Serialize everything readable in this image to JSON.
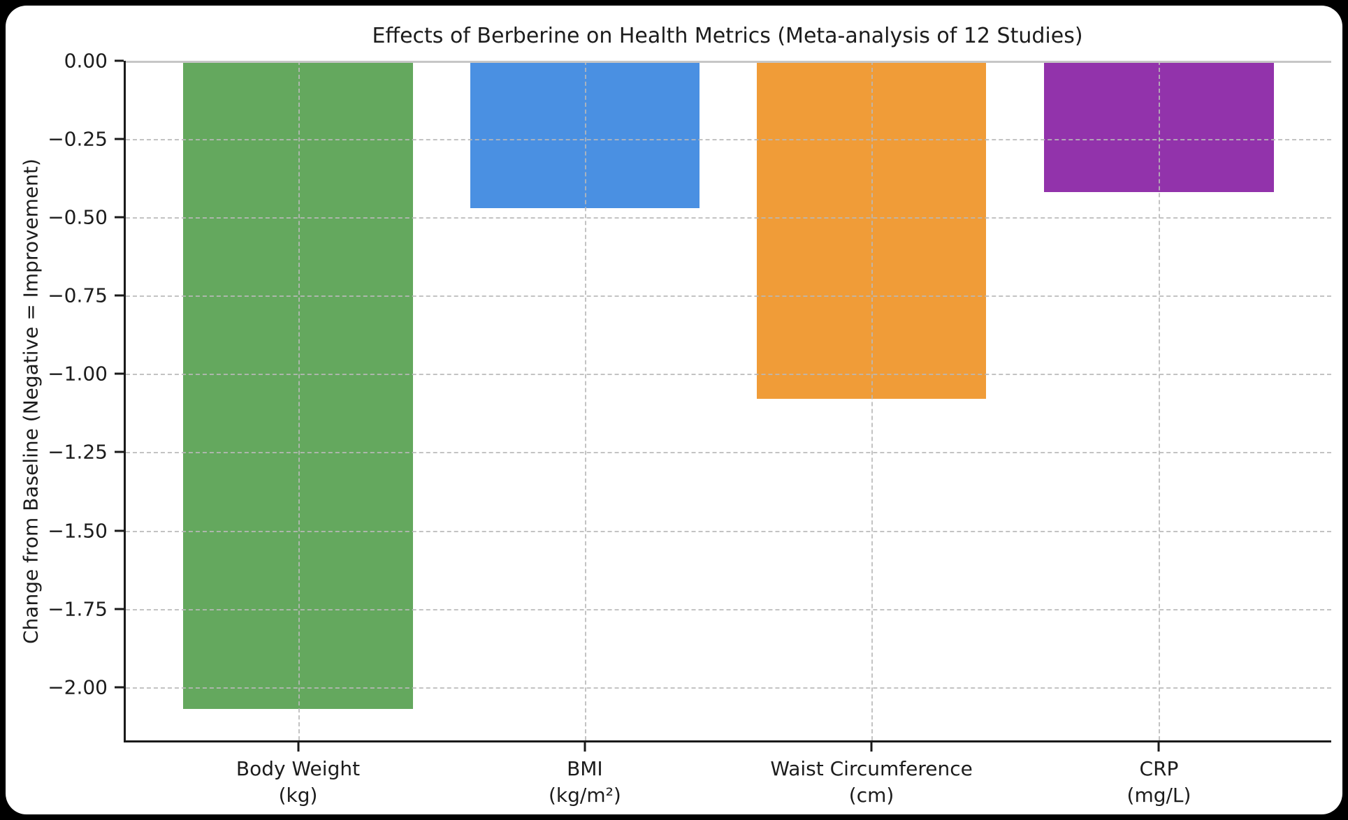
{
  "title": "Effects of Berberine on Health Metrics (Meta-analysis of 12 Studies)",
  "chart_data": {
    "type": "bar",
    "title": "Effects of Berberine on Health Metrics (Meta-analysis of 12 Studies)",
    "xlabel": "",
    "ylabel": "Change from Baseline (Negative = Improvement)",
    "categories": [
      "Body Weight\n(kg)",
      "BMI\n(kg/m²)",
      "Waist Circumference\n(cm)",
      "CRP\n(mg/L)"
    ],
    "category_slugs": [
      "body-weight",
      "bmi",
      "waist-circumference",
      "crp"
    ],
    "values": [
      -2.07,
      -0.47,
      -1.08,
      -0.42
    ],
    "bar_colors": [
      "#64a85e",
      "#4a90e2",
      "#f09c38",
      "#9233ab"
    ],
    "ylim": [
      -2.17,
      0
    ],
    "yticks": [
      0,
      -0.25,
      -0.5,
      -0.75,
      -1,
      -1.25,
      -1.5,
      -1.75,
      -2
    ],
    "ytick_labels": [
      "0.00",
      "−0.25",
      "−0.50",
      "−0.75",
      "−1.00",
      "−1.25",
      "−1.50",
      "−1.75",
      "−2.00"
    ],
    "bar_centers_pct": [
      14.29,
      38.08,
      61.86,
      85.71
    ],
    "bar_width_pct": 19.04,
    "grid": true,
    "legend": "none",
    "plot_bg": "#ffffff",
    "page_bg": "#000000"
  }
}
